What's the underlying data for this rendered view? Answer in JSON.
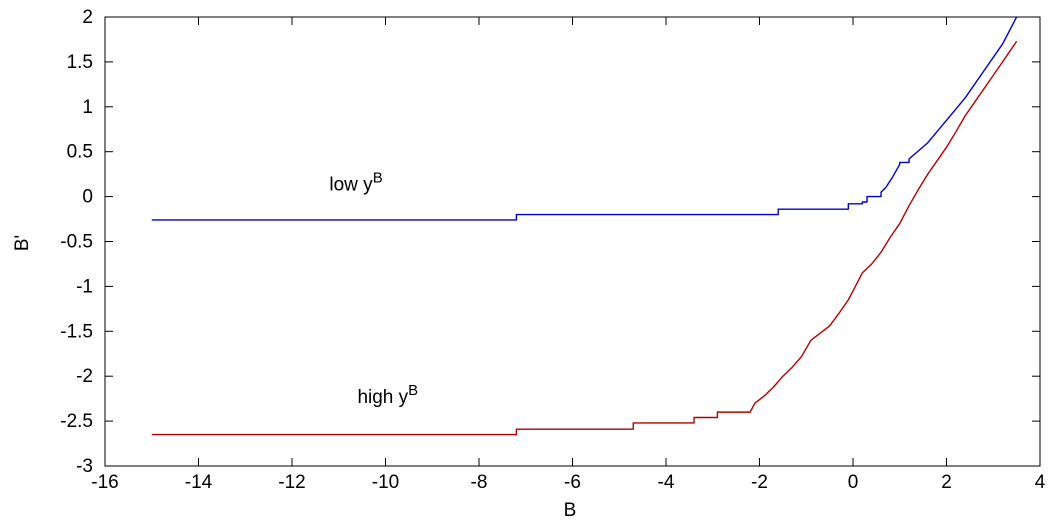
{
  "chart_data": {
    "type": "line",
    "title": "",
    "xlabel": "B",
    "ylabel": "B'",
    "xlim": [
      -16,
      4
    ],
    "ylim": [
      -3,
      2
    ],
    "xticks": [
      -16,
      -14,
      -12,
      -10,
      -8,
      -6,
      -4,
      -2,
      0,
      2,
      4
    ],
    "xtick_labels": [
      "-16",
      "-14",
      "-12",
      "-10",
      "-8",
      "-6",
      "-4",
      "-2",
      "0",
      "2",
      "4"
    ],
    "yticks": [
      -3,
      -2.5,
      -2,
      -1.5,
      -1,
      -0.5,
      0,
      0.5,
      1,
      1.5,
      2
    ],
    "ytick_labels": [
      "-3",
      "-2.5",
      "-2",
      "-1.5",
      "-1",
      "-0.5",
      "0",
      "0.5",
      "1",
      "1.5",
      "2"
    ],
    "grid": false,
    "series": [
      {
        "color": "#0000cc",
        "x": [
          -15,
          -7.2,
          -7.2,
          -1.6,
          -1.6,
          -0.1,
          -0.1,
          0.2,
          0.2,
          0.3,
          0.3,
          0.6,
          0.6,
          0.7,
          0.85,
          1.0,
          1.0,
          1.2,
          1.2,
          1.6,
          2.0,
          2.4,
          2.8,
          3.2,
          3.5
        ],
        "y": [
          -0.26,
          -0.26,
          -0.2,
          -0.2,
          -0.14,
          -0.14,
          -0.08,
          -0.08,
          -0.06,
          -0.06,
          0.0,
          0.0,
          0.05,
          0.1,
          0.22,
          0.36,
          0.38,
          0.38,
          0.42,
          0.6,
          0.85,
          1.1,
          1.4,
          1.7,
          2.0
        ]
      },
      {
        "color": "#b20000",
        "x": [
          -15,
          -7.2,
          -7.2,
          -4.7,
          -4.7,
          -3.4,
          -3.4,
          -2.9,
          -2.9,
          -2.2,
          -2.1,
          -1.9,
          -1.7,
          -1.5,
          -1.3,
          -1.1,
          -0.9,
          -0.7,
          -0.5,
          -0.3,
          -0.1,
          0.0,
          0.2,
          0.4,
          0.6,
          0.8,
          1.0,
          1.2,
          1.4,
          1.6,
          1.8,
          2.0,
          2.2,
          2.4,
          2.6,
          2.8,
          3.0,
          3.2,
          3.5
        ],
        "y": [
          -2.65,
          -2.65,
          -2.59,
          -2.59,
          -2.52,
          -2.52,
          -2.46,
          -2.46,
          -2.4,
          -2.4,
          -2.3,
          -2.22,
          -2.12,
          -2.0,
          -1.9,
          -1.78,
          -1.6,
          -1.52,
          -1.44,
          -1.3,
          -1.15,
          -1.05,
          -0.85,
          -0.75,
          -0.62,
          -0.45,
          -0.3,
          -0.1,
          0.08,
          0.25,
          0.4,
          0.55,
          0.72,
          0.9,
          1.05,
          1.2,
          1.35,
          1.5,
          1.73
        ]
      }
    ],
    "annotations": [
      {
        "id": "low",
        "text": "low y",
        "superscript": "B",
        "x": -11.2,
        "y": 0.07
      },
      {
        "id": "high",
        "text": "high y",
        "superscript": "B",
        "x": -10.6,
        "y": -2.3
      }
    ]
  }
}
